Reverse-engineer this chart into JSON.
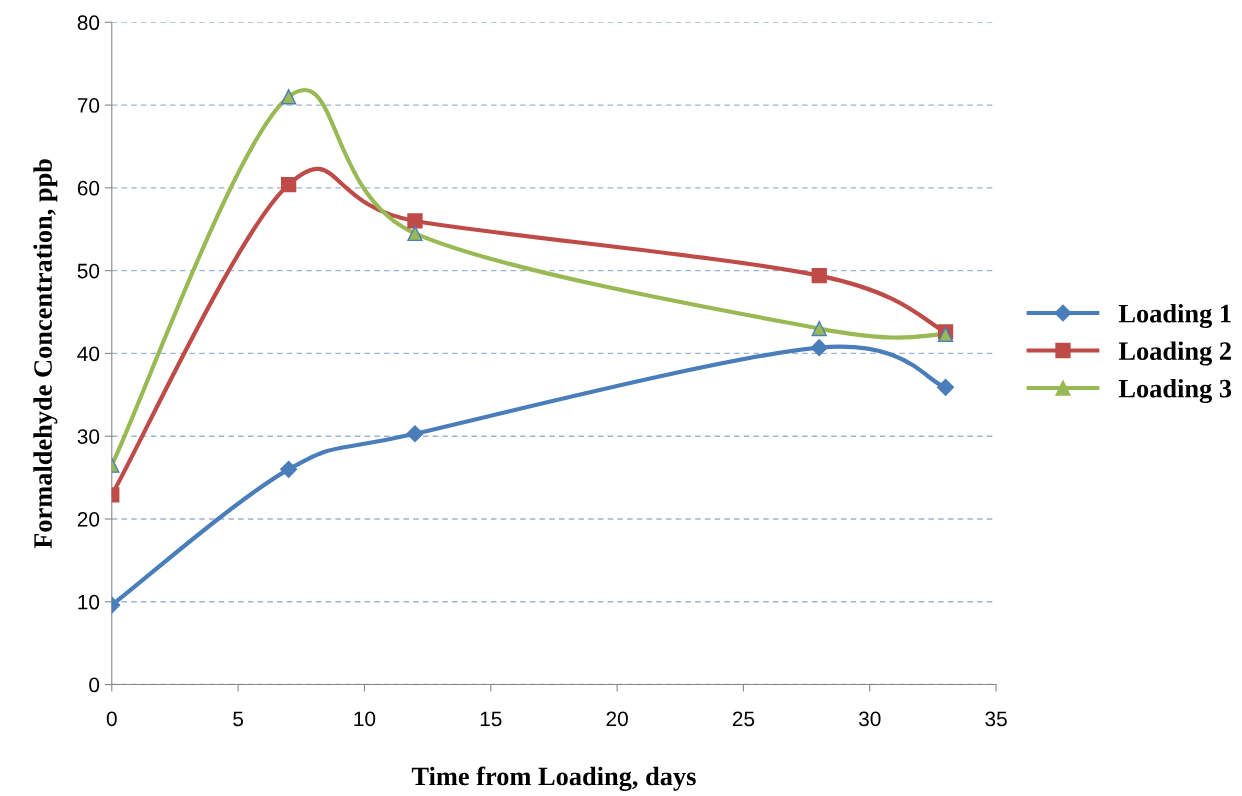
{
  "chart_data": {
    "type": "line",
    "xlabel": "Time from Loading, days",
    "ylabel": "Formaldehyde Concentration, ppb",
    "x": [
      0,
      7,
      12,
      28,
      33
    ],
    "series": [
      {
        "name": "Loading 1",
        "color": "#4a7ebb",
        "marker": "diamond",
        "values": [
          9.6,
          26,
          30.3,
          40.7,
          35.9
        ]
      },
      {
        "name": "Loading 2",
        "color": "#be4b48",
        "marker": "square",
        "values": [
          22.9,
          60.4,
          56,
          49.4,
          42.6
        ]
      },
      {
        "name": "Loading 3",
        "color": "#98b954",
        "marker": "triangle",
        "values": [
          26.5,
          71,
          54.5,
          43,
          42.3
        ]
      }
    ],
    "xlim": [
      0,
      35
    ],
    "xticks": [
      0,
      5,
      10,
      15,
      20,
      25,
      30,
      35
    ],
    "ylim": [
      0,
      80
    ],
    "yticks": [
      0,
      10,
      20,
      30,
      40,
      50,
      60,
      70,
      80
    ],
    "grid": "y",
    "legend": "right",
    "line_style": "solid"
  }
}
